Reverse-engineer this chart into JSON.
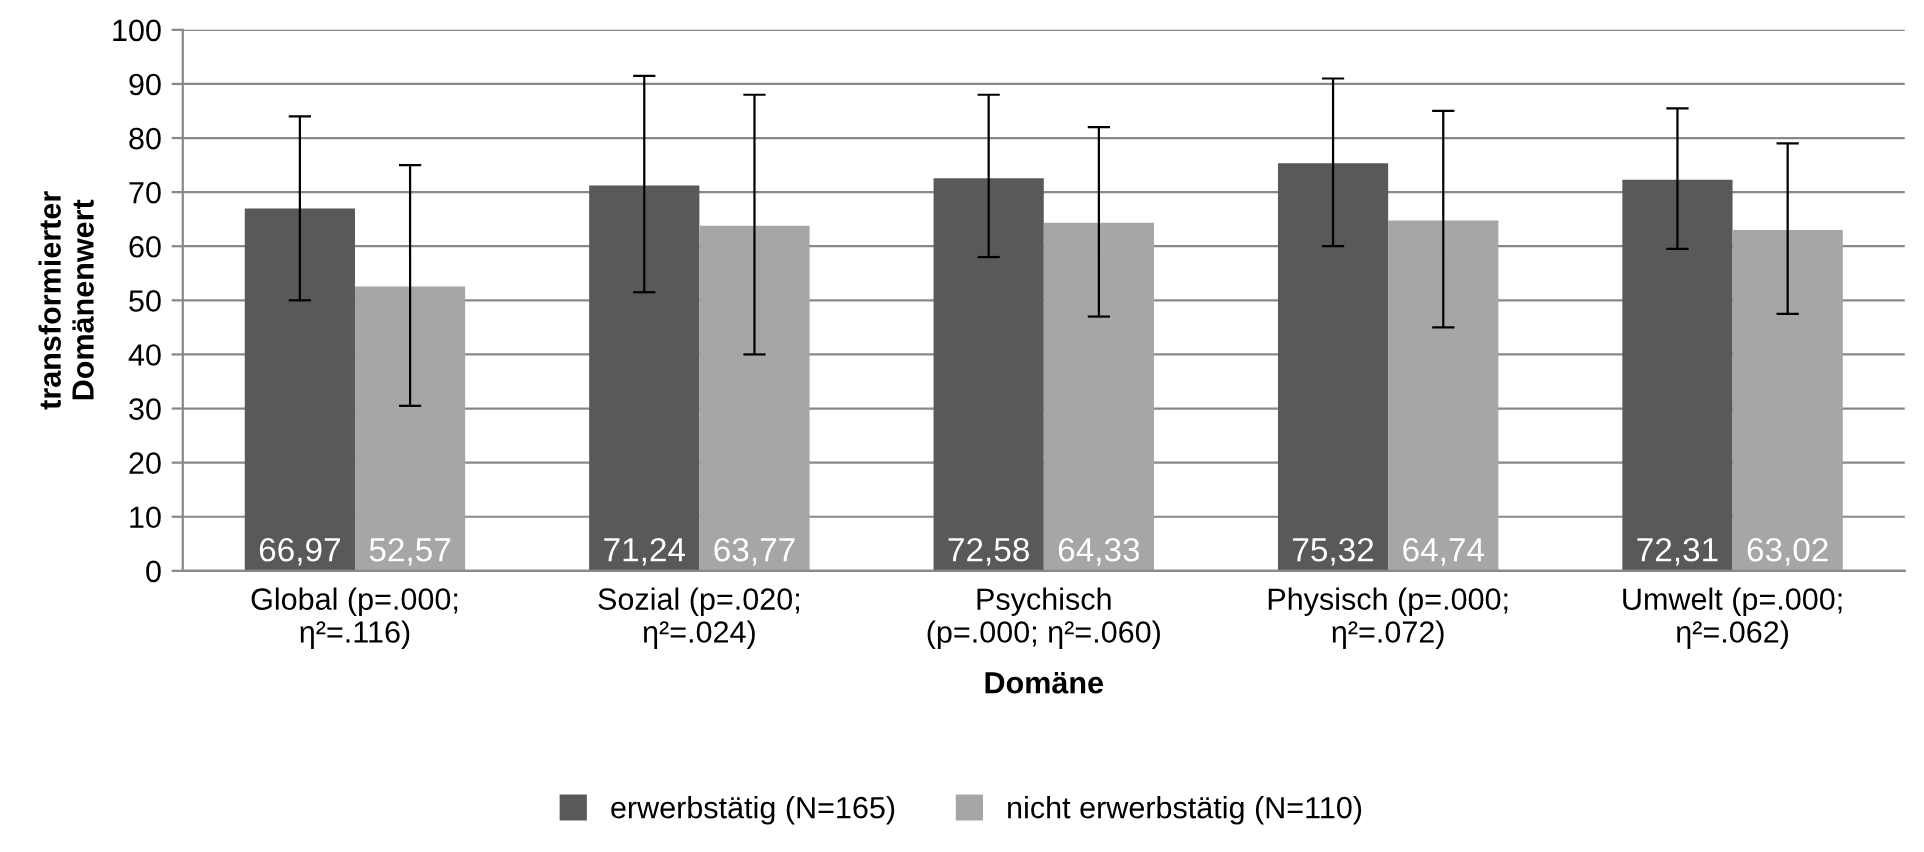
{
  "chart_data": {
    "type": "bar",
    "xlabel": "Domäne",
    "ylabel": "transformierter\nDomänenwert",
    "categories": [
      "Global (p=.000;\nη²=.116)",
      "Sozial (p=.020;\nη²=.024)",
      "Psychisch\n(p=.000; η²=.060)",
      "Physisch (p=.000;\nη²=.072)",
      "Umwelt (p=.000;\nη²=.062)"
    ],
    "series": [
      {
        "name": "erwerbstätig (N=165)",
        "color": "#595959",
        "values": [
          66.97,
          71.24,
          72.58,
          75.32,
          72.31
        ],
        "value_labels": [
          "66,97",
          "71,24",
          "72,58",
          "75,32",
          "72,31"
        ],
        "errors": [
          [
            50,
            84
          ],
          [
            51.5,
            91.5
          ],
          [
            58,
            88
          ],
          [
            60,
            91
          ],
          [
            59.5,
            85.5
          ]
        ]
      },
      {
        "name": "nicht erwerbstätig (N=110)",
        "color": "#a6a6a6",
        "values": [
          52.57,
          63.77,
          64.33,
          64.74,
          63.02
        ],
        "value_labels": [
          "52,57",
          "63,77",
          "64,33",
          "64,74",
          "63,02"
        ],
        "errors": [
          [
            30.5,
            75
          ],
          [
            40,
            88
          ],
          [
            47,
            82
          ],
          [
            45,
            85
          ],
          [
            47.5,
            79
          ]
        ]
      }
    ],
    "ylim": [
      0,
      100
    ],
    "yticks": [
      0,
      10,
      20,
      30,
      40,
      50,
      60,
      70,
      80,
      90,
      100
    ],
    "grid": "y",
    "legend": "bottom"
  }
}
